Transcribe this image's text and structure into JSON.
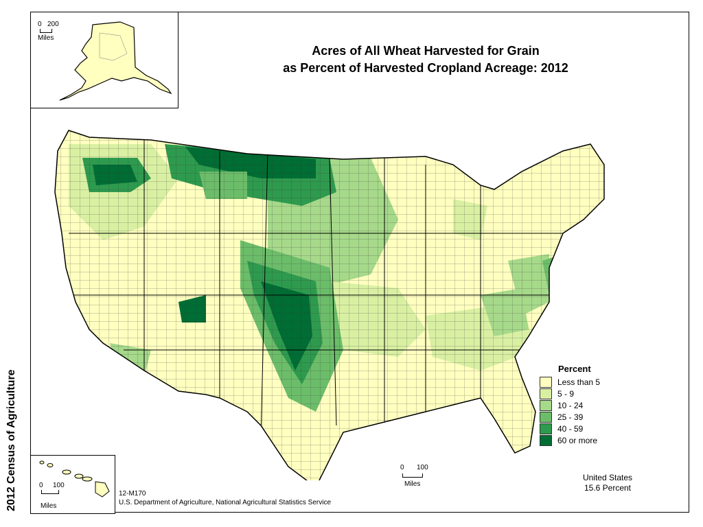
{
  "title_line1": "Acres of All Wheat Harvested for Grain",
  "title_line2": "as Percent of Harvested Cropland Acreage:  2012",
  "side_label": "2012 Census of Agriculture",
  "legend": {
    "title": "Percent",
    "items": [
      {
        "label": "Less than 5",
        "color": "#ffffc0"
      },
      {
        "label": "5 - 9",
        "color": "#d9f0a3"
      },
      {
        "label": "10 - 24",
        "color": "#a6d98a"
      },
      {
        "label": "25 - 39",
        "color": "#6cbd6a"
      },
      {
        "label": "40 - 59",
        "color": "#2e9a4e"
      },
      {
        "label": "60 or more",
        "color": "#006d34"
      }
    ]
  },
  "us_summary": {
    "line1": "United States",
    "line2": "15.6 Percent"
  },
  "footer": {
    "code": "12-M170",
    "source": "U.S. Department of Agriculture, National Agricultural Statistics Service"
  },
  "scales": {
    "alaska": {
      "min": "0",
      "max": "200",
      "unit": "Miles"
    },
    "hawaii": {
      "min": "0",
      "max": "100",
      "unit": "Miles"
    },
    "conus": {
      "min": "0",
      "max": "100",
      "unit": "Miles"
    }
  },
  "colors": {
    "border": "#000000",
    "county_line": "#333333"
  }
}
